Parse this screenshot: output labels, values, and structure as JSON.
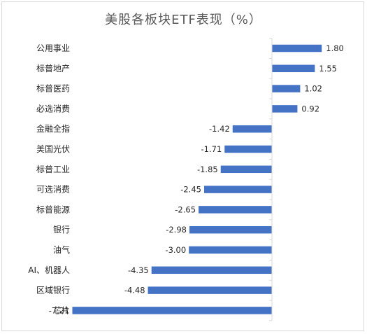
{
  "chart_data": {
    "type": "bar",
    "orientation": "horizontal",
    "title": "美股各板块ETF表现（%）",
    "categories": [
      "公用事业",
      "标普地产",
      "标普医药",
      "必选消费",
      "金融全指",
      "美国光伏",
      "标普工业",
      "可选消费",
      "标普能源",
      "银行",
      "油气",
      "AI、机器人",
      "区域银行",
      "芯片"
    ],
    "values": [
      1.8,
      1.55,
      1.02,
      0.92,
      -1.42,
      -1.71,
      -1.85,
      -2.45,
      -2.65,
      -2.98,
      -3.0,
      -4.35,
      -4.48,
      -7.21
    ],
    "value_labels": [
      "1.80",
      "1.55",
      "1.02",
      "0.92",
      "-1.42",
      "-1.71",
      "-1.85",
      "-2.45",
      "-2.65",
      "-2.98",
      "-3.00",
      "-4.35",
      "-4.48",
      "-7.21"
    ],
    "xlim": [
      -7.5,
      2.0
    ],
    "grid": false,
    "legend": "none",
    "bar_color": "#4472c4"
  }
}
